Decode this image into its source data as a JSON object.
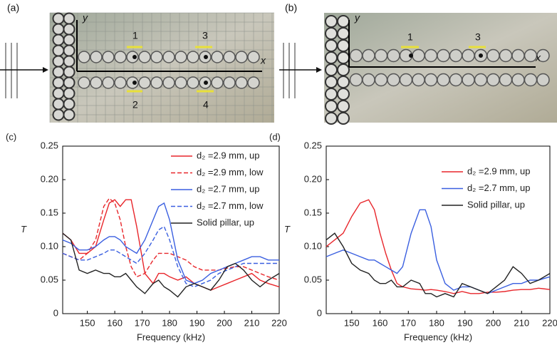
{
  "figure": {
    "photo_a": {
      "label": "(a)",
      "markers": [
        "1",
        "3",
        "2",
        "4"
      ],
      "x_axis": "x",
      "y_axis": "y"
    },
    "photo_b": {
      "label": "(b)",
      "markers": [
        "1",
        "3"
      ],
      "x_axis": "x",
      "y_axis": "y"
    }
  },
  "chart_data": [
    {
      "type": "line",
      "label": "(c)",
      "xlabel": "Frequency (kHz)",
      "ylabel": "T",
      "legend": "upper right",
      "x": [
        141,
        144,
        147,
        150,
        153,
        156,
        158,
        160,
        162,
        164,
        166,
        168,
        171,
        174,
        176,
        178,
        180,
        183,
        186,
        189,
        192,
        195,
        198,
        201,
        204,
        207,
        210,
        213,
        216,
        220
      ],
      "xlim": [
        141,
        220
      ],
      "xticks": [
        150,
        160,
        170,
        180,
        190,
        200,
        210,
        220
      ],
      "ylim": [
        0,
        0.25
      ],
      "yticks": [
        0,
        0.05,
        {
          "value": 0.1,
          "label": "0.10"
        },
        0.15,
        {
          "value": 0.2,
          "label": "0.20"
        },
        0.25
      ],
      "series": [
        {
          "name": "d₂ =2.9 mm, up",
          "color": "#e8262b",
          "linestyle": "solid",
          "values": [
            0.12,
            0.11,
            0.09,
            0.09,
            0.1,
            0.14,
            0.165,
            0.17,
            0.16,
            0.17,
            0.17,
            0.13,
            0.06,
            0.045,
            0.06,
            0.06,
            0.055,
            0.05,
            0.055,
            0.045,
            0.04,
            0.035,
            0.04,
            0.045,
            0.05,
            0.055,
            0.06,
            0.05,
            0.045,
            0.04
          ]
        },
        {
          "name": "d₂ =2.9 mm, low",
          "color": "#e8262b",
          "linestyle": "dashed",
          "values": [
            0.09,
            0.085,
            0.08,
            0.09,
            0.11,
            0.16,
            0.172,
            0.165,
            0.14,
            0.1,
            0.07,
            0.055,
            0.06,
            0.08,
            0.09,
            0.09,
            0.09,
            0.085,
            0.08,
            0.07,
            0.065,
            0.065,
            0.065,
            0.068,
            0.07,
            0.07,
            0.065,
            0.06,
            0.055,
            0.05
          ]
        },
        {
          "name": "d₂ =2.7 mm, up",
          "color": "#3a5fe0",
          "linestyle": "solid",
          "values": [
            0.11,
            0.105,
            0.095,
            0.095,
            0.1,
            0.11,
            0.115,
            0.115,
            0.11,
            0.1,
            0.095,
            0.09,
            0.11,
            0.14,
            0.16,
            0.165,
            0.14,
            0.08,
            0.05,
            0.045,
            0.05,
            0.06,
            0.065,
            0.07,
            0.075,
            0.08,
            0.085,
            0.085,
            0.08,
            0.08
          ]
        },
        {
          "name": "d₂ =2.7 mm, low",
          "color": "#3a5fe0",
          "linestyle": "dashed",
          "values": [
            0.09,
            0.085,
            0.08,
            0.08,
            0.085,
            0.09,
            0.095,
            0.095,
            0.09,
            0.085,
            0.08,
            0.075,
            0.09,
            0.11,
            0.125,
            0.13,
            0.11,
            0.07,
            0.045,
            0.04,
            0.045,
            0.05,
            0.06,
            0.065,
            0.07,
            0.075,
            0.075,
            0.075,
            0.075,
            0.075
          ]
        },
        {
          "name": "Solid pillar, up",
          "color": "#222222",
          "linestyle": "solid",
          "values": [
            0.12,
            0.11,
            0.065,
            0.06,
            0.065,
            0.06,
            0.06,
            0.055,
            0.055,
            0.06,
            0.05,
            0.04,
            0.03,
            0.045,
            0.05,
            0.04,
            0.035,
            0.025,
            0.04,
            0.045,
            0.04,
            0.035,
            0.05,
            0.07,
            0.075,
            0.065,
            0.05,
            0.04,
            0.05,
            0.06
          ]
        }
      ]
    },
    {
      "type": "line",
      "label": "(d)",
      "xlabel": "Frequency (kHz)",
      "ylabel": "T",
      "legend": "upper right",
      "x": [
        141,
        144,
        147,
        150,
        153,
        156,
        158,
        160,
        162,
        164,
        166,
        168,
        171,
        174,
        176,
        178,
        180,
        183,
        186,
        189,
        192,
        195,
        198,
        201,
        204,
        207,
        210,
        213,
        216,
        220
      ],
      "xlim": [
        141,
        220
      ],
      "xticks": [
        150,
        160,
        170,
        180,
        190,
        200,
        210,
        220
      ],
      "ylim": [
        0,
        0.25
      ],
      "yticks": [
        0,
        0.05,
        {
          "value": 0.1,
          "label": "0.10"
        },
        0.15,
        {
          "value": 0.2,
          "label": "0.20"
        },
        0.25
      ],
      "series": [
        {
          "name": "d₂ =2.9 mm, up",
          "color": "#e8262b",
          "linestyle": "solid",
          "values": [
            0.1,
            0.11,
            0.12,
            0.145,
            0.165,
            0.17,
            0.155,
            0.12,
            0.09,
            0.065,
            0.045,
            0.04,
            0.037,
            0.036,
            0.035,
            0.036,
            0.035,
            0.033,
            0.03,
            0.033,
            0.03,
            0.03,
            0.032,
            0.032,
            0.033,
            0.035,
            0.036,
            0.036,
            0.038,
            0.036
          ]
        },
        {
          "name": "d₂ =2.7 mm, up",
          "color": "#3a5fe0",
          "linestyle": "solid",
          "values": [
            0.085,
            0.09,
            0.095,
            0.09,
            0.085,
            0.08,
            0.08,
            0.075,
            0.07,
            0.065,
            0.06,
            0.07,
            0.12,
            0.155,
            0.155,
            0.13,
            0.08,
            0.045,
            0.035,
            0.04,
            0.04,
            0.035,
            0.03,
            0.035,
            0.04,
            0.045,
            0.045,
            0.05,
            0.05,
            0.055
          ]
        },
        {
          "name": "Solid pillar, up",
          "color": "#222222",
          "linestyle": "solid",
          "values": [
            0.11,
            0.12,
            0.1,
            0.075,
            0.065,
            0.06,
            0.05,
            0.045,
            0.045,
            0.05,
            0.04,
            0.04,
            0.05,
            0.045,
            0.03,
            0.03,
            0.025,
            0.03,
            0.025,
            0.045,
            0.04,
            0.035,
            0.03,
            0.04,
            0.05,
            0.07,
            0.06,
            0.045,
            0.05,
            0.06
          ]
        }
      ]
    }
  ]
}
